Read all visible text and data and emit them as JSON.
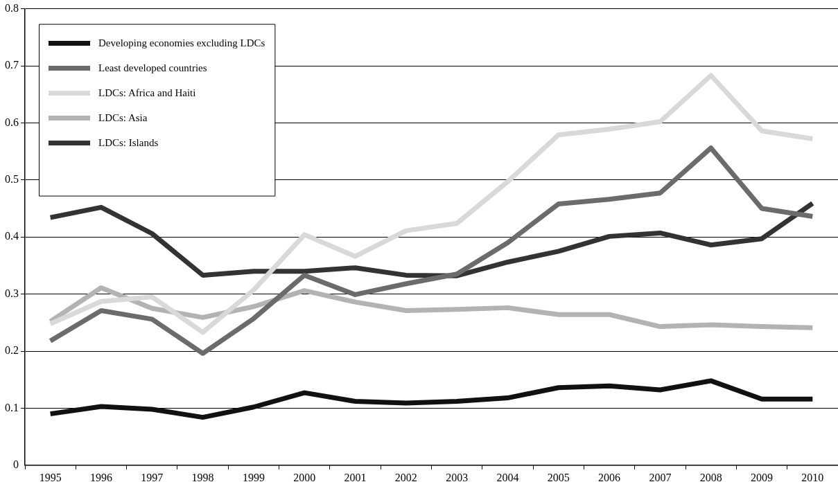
{
  "chart_data": {
    "type": "line",
    "categories": [
      "1995",
      "1996",
      "1997",
      "1998",
      "1999",
      "2000",
      "2001",
      "2002",
      "2003",
      "2004",
      "2005",
      "2006",
      "2007",
      "2008",
      "2009",
      "2010"
    ],
    "series": [
      {
        "name": "Developing economies excluding LDCs",
        "color": "#111111",
        "values": [
          0.09,
          0.103,
          0.098,
          0.084,
          0.102,
          0.127,
          0.112,
          0.109,
          0.112,
          0.118,
          0.136,
          0.139,
          0.132,
          0.148,
          0.116,
          0.116
        ]
      },
      {
        "name": "Least developed countries",
        "color": "#6b6b6b",
        "values": [
          0.218,
          0.271,
          0.256,
          0.196,
          0.257,
          0.333,
          0.299,
          0.318,
          0.335,
          0.39,
          0.458,
          0.466,
          0.477,
          0.556,
          0.45,
          0.436
        ]
      },
      {
        "name": "LDCs: Africa and Haiti",
        "color": "#d9d9d9",
        "values": [
          0.248,
          0.287,
          0.295,
          0.233,
          0.307,
          0.404,
          0.366,
          0.411,
          0.424,
          0.497,
          0.579,
          0.589,
          0.602,
          0.683,
          0.586,
          0.572
        ]
      },
      {
        "name": "LDCs: Asia",
        "color": "#b3b3b3",
        "values": [
          0.252,
          0.311,
          0.275,
          0.259,
          0.278,
          0.306,
          0.286,
          0.271,
          0.273,
          0.276,
          0.264,
          0.264,
          0.243,
          0.246,
          0.243,
          0.241
        ]
      },
      {
        "name": "LDCs: Islands",
        "color": "#333333",
        "values": [
          0.434,
          0.452,
          0.406,
          0.333,
          0.34,
          0.34,
          0.346,
          0.333,
          0.332,
          0.356,
          0.375,
          0.401,
          0.407,
          0.386,
          0.397,
          0.459
        ]
      }
    ],
    "ylim": [
      0,
      0.8
    ],
    "yticks": [
      0,
      0.1,
      0.2,
      0.3,
      0.4,
      0.5,
      0.6,
      0.7,
      0.8
    ],
    "grid": "y",
    "legend": "top left",
    "marker": "none",
    "line_style": "solid"
  }
}
